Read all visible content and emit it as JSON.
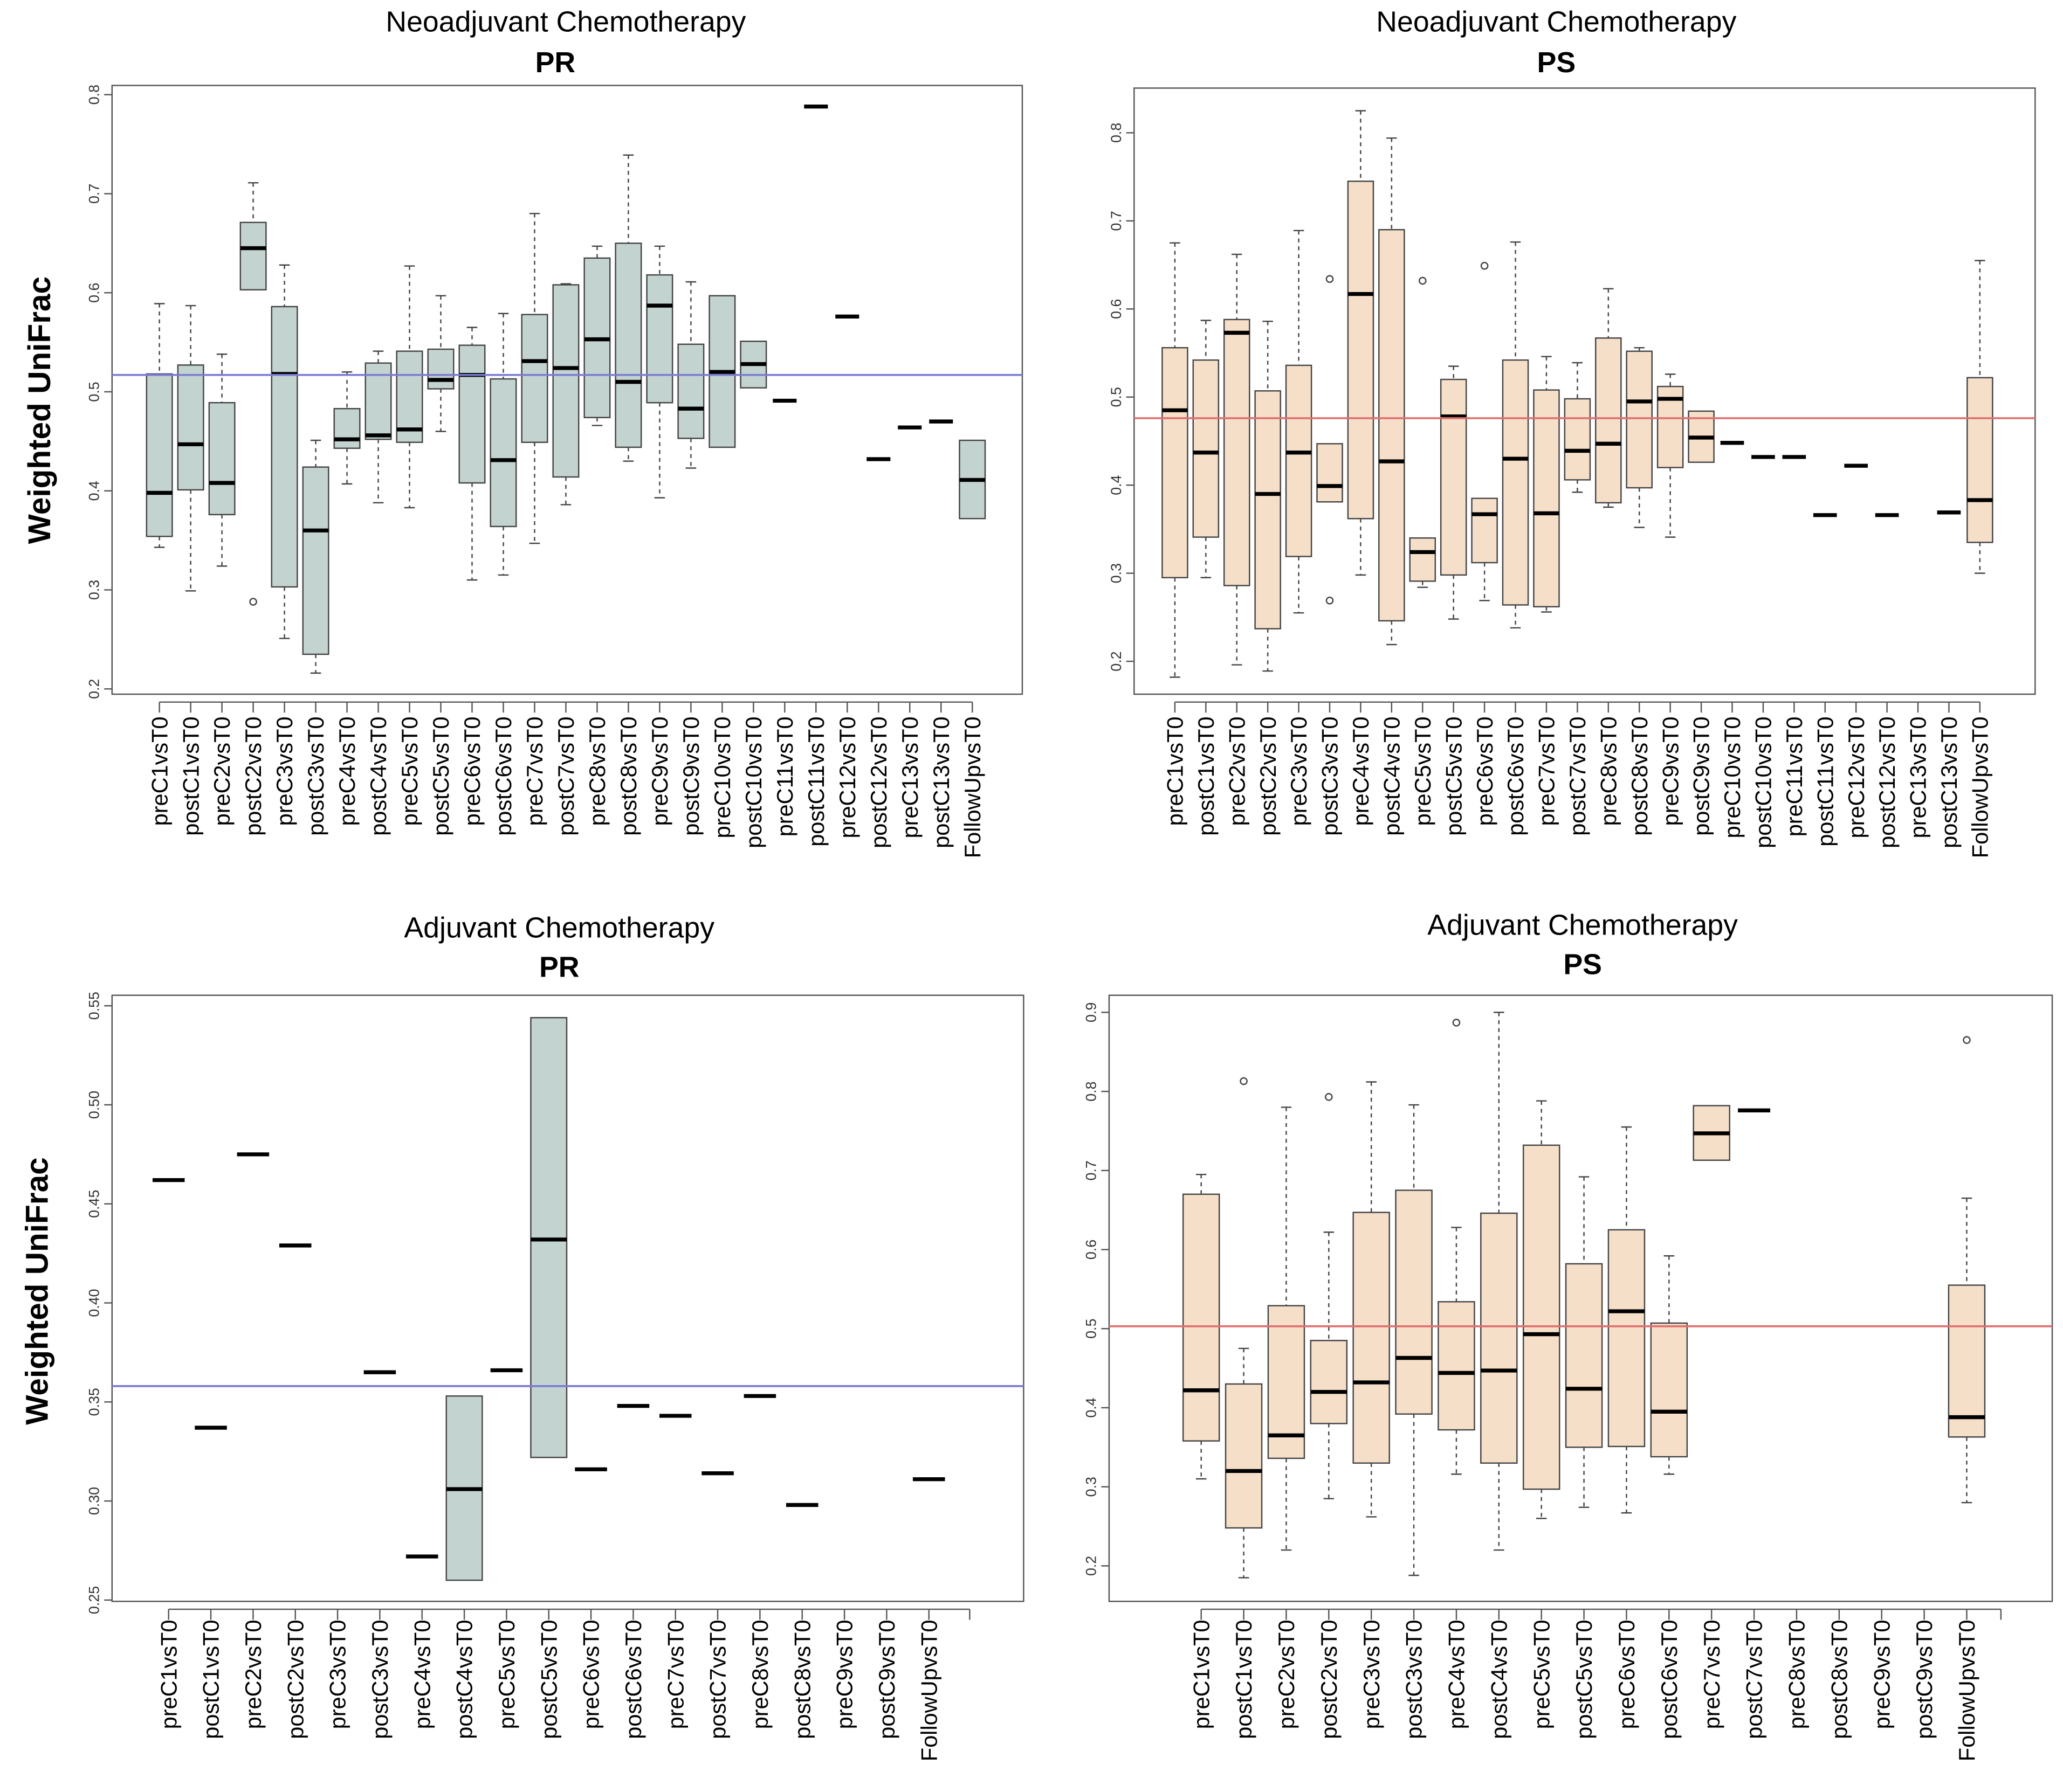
{
  "chart_data": [
    {
      "type": "box",
      "title": "Neoadjuvant Chemotherapy",
      "subtitle": "PR",
      "ylabel": "Weighted UniFrac",
      "xlabel": "",
      "ylim": [
        0.2,
        0.8
      ],
      "yticks": [
        "0.2",
        "0.3",
        "0.4",
        "0.5",
        "0.6",
        "0.7",
        "0.8"
      ],
      "reference_line": 0.517,
      "reference_color": "#7b7bd6",
      "box_color": "#c3d3d0",
      "categories": [
        "preC1vsT0",
        "postC1vsT0",
        "preC2vsT0",
        "postC2vsT0",
        "preC3vsT0",
        "postC3vsT0",
        "preC4vsT0",
        "postC4vsT0",
        "preC5vsT0",
        "postC5vsT0",
        "preC6vsT0",
        "postC6vsT0",
        "preC7vsT0",
        "postC7vsT0",
        "preC8vsT0",
        "postC8vsT0",
        "preC9vsT0",
        "postC9vsT0",
        "preC10vsT0",
        "postC10vsT0",
        "preC11vsT0",
        "postC11vsT0",
        "preC12vsT0",
        "postC12vsT0",
        "preC13vsT0",
        "postC13vsT0",
        "FollowUpvsT0"
      ],
      "stats_order": [
        "whisker_low",
        "q1",
        "median",
        "q3",
        "whisker_high"
      ],
      "boxes": [
        [
          0.343,
          0.354,
          0.398,
          0.518,
          0.589
        ],
        [
          0.299,
          0.401,
          0.447,
          0.527,
          0.587
        ],
        [
          0.324,
          0.376,
          0.408,
          0.489,
          0.538
        ],
        [
          0.603,
          0.603,
          0.645,
          0.671,
          0.711
        ],
        [
          0.251,
          0.303,
          0.518,
          0.586,
          0.628
        ],
        [
          0.216,
          0.235,
          0.36,
          0.424,
          0.451
        ],
        [
          0.407,
          0.443,
          0.452,
          0.483,
          0.52
        ],
        [
          0.388,
          0.452,
          0.456,
          0.529,
          0.541
        ],
        [
          0.383,
          0.449,
          0.462,
          0.541,
          0.627
        ],
        [
          0.46,
          0.503,
          0.512,
          0.543,
          0.597
        ],
        [
          0.31,
          0.408,
          0.517,
          0.547,
          0.565
        ],
        [
          0.315,
          0.364,
          0.431,
          0.513,
          0.579
        ],
        [
          0.347,
          0.449,
          0.531,
          0.578,
          0.68
        ],
        [
          0.386,
          0.414,
          0.524,
          0.608,
          0.609
        ],
        [
          0.466,
          0.474,
          0.553,
          0.635,
          0.647
        ],
        [
          0.43,
          0.444,
          0.51,
          0.65,
          0.739
        ],
        [
          0.393,
          0.489,
          0.587,
          0.618,
          0.647
        ],
        [
          0.423,
          0.453,
          0.483,
          0.548,
          0.611
        ],
        [
          0.444,
          0.444,
          0.52,
          0.597,
          0.597
        ],
        [
          0.504,
          0.504,
          0.528,
          0.551,
          0.551
        ],
        [
          0.491,
          0.491,
          0.491,
          0.491,
          0.491
        ],
        [
          0.788,
          0.788,
          0.788,
          0.788,
          0.788
        ],
        [
          0.576,
          0.576,
          0.576,
          0.576,
          0.576
        ],
        [
          0.432,
          0.432,
          0.432,
          0.432,
          0.432
        ],
        [
          0.464,
          0.464,
          0.464,
          0.464,
          0.464
        ],
        [
          0.47,
          0.47,
          0.47,
          0.47,
          0.47
        ],
        [
          0.372,
          0.372,
          0.411,
          0.451,
          0.451
        ]
      ],
      "outliers": [
        [],
        [],
        [],
        [
          0.288
        ],
        [],
        [],
        [],
        [],
        [],
        [],
        [],
        [],
        [],
        [],
        [],
        [],
        [],
        [],
        [],
        [],
        [],
        [],
        [],
        [],
        [],
        [],
        []
      ]
    },
    {
      "type": "box",
      "title": "Neoadjuvant Chemotherapy",
      "subtitle": "PS",
      "ylabel": "",
      "xlabel": "",
      "ylim": [
        0.15,
        0.85
      ],
      "yticks": [
        "0.2",
        "0.3",
        "0.4",
        "0.5",
        "0.6",
        "0.7",
        "0.8"
      ],
      "reference_line": 0.476,
      "reference_color": "#e07070",
      "box_color": "#f5dfc9",
      "categories": [
        "preC1vsT0",
        "postC1vsT0",
        "preC2vsT0",
        "postC2vsT0",
        "preC3vsT0",
        "postC3vsT0",
        "preC4vsT0",
        "postC4vsT0",
        "preC5vsT0",
        "postC5vsT0",
        "preC6vsT0",
        "postC6vsT0",
        "preC7vsT0",
        "postC7vsT0",
        "preC8vsT0",
        "postC8vsT0",
        "preC9vsT0",
        "postC9vsT0",
        "preC10vsT0",
        "postC10vsT0",
        "preC11vsT0",
        "postC11vsT0",
        "preC12vsT0",
        "postC12vsT0",
        "preC13vsT0",
        "postC13vsT0",
        "FollowUpvsT0"
      ],
      "stats_order": [
        "whisker_low",
        "q1",
        "median",
        "q3",
        "whisker_high"
      ],
      "boxes": [
        [
          0.182,
          0.295,
          0.485,
          0.556,
          0.675
        ],
        [
          0.295,
          0.341,
          0.437,
          0.542,
          0.587
        ],
        [
          0.196,
          0.286,
          0.573,
          0.588,
          0.662
        ],
        [
          0.189,
          0.237,
          0.39,
          0.507,
          0.586
        ],
        [
          0.255,
          0.319,
          0.437,
          0.536,
          0.689
        ],
        [
          0.381,
          0.381,
          0.399,
          0.447,
          0.447
        ],
        [
          0.298,
          0.362,
          0.617,
          0.745,
          0.825
        ],
        [
          0.219,
          0.246,
          0.427,
          0.69,
          0.794
        ],
        [
          0.284,
          0.291,
          0.324,
          0.34,
          0.34
        ],
        [
          0.248,
          0.298,
          0.478,
          0.52,
          0.535
        ],
        [
          0.269,
          0.312,
          0.367,
          0.385,
          0.385
        ],
        [
          0.238,
          0.264,
          0.43,
          0.542,
          0.676
        ],
        [
          0.256,
          0.262,
          0.368,
          0.508,
          0.546
        ],
        [
          0.392,
          0.406,
          0.439,
          0.498,
          0.539
        ],
        [
          0.375,
          0.38,
          0.447,
          0.567,
          0.623
        ],
        [
          0.352,
          0.397,
          0.495,
          0.552,
          0.556
        ],
        [
          0.341,
          0.42,
          0.498,
          0.512,
          0.526
        ],
        [
          0.426,
          0.426,
          0.454,
          0.484,
          0.484
        ],
        [
          0.448,
          0.448,
          0.448,
          0.448,
          0.448
        ],
        [
          0.432,
          0.432,
          0.432,
          0.432,
          0.432
        ],
        [
          0.432,
          0.432,
          0.432,
          0.432,
          0.432
        ],
        [
          0.366,
          0.366,
          0.366,
          0.366,
          0.366
        ],
        [
          0.422,
          0.422,
          0.422,
          0.422,
          0.422
        ],
        [
          0.366,
          0.366,
          0.366,
          0.366,
          0.366
        ],
        null,
        [
          0.369,
          0.369,
          0.369,
          0.369,
          0.369
        ],
        [
          0.3,
          0.335,
          0.383,
          0.522,
          0.655
        ]
      ],
      "outliers": [
        [],
        [],
        [],
        [],
        [],
        [
          0.634,
          0.269
        ],
        [],
        [],
        [
          0.632
        ],
        [],
        [
          0.649
        ],
        [],
        [],
        [],
        [],
        [],
        [],
        [],
        [],
        [],
        [],
        [],
        [],
        [],
        [],
        [],
        []
      ]
    },
    {
      "type": "box",
      "title": "Adjuvant Chemotherapy",
      "subtitle": "PR",
      "ylabel": "Weighted UniFrac",
      "xlabel": "",
      "ylim": [
        0.25,
        0.55
      ],
      "yticks": [
        "0.25",
        "0.30",
        "0.35",
        "0.40",
        "0.45",
        "0.50",
        "0.55"
      ],
      "reference_line": 0.358,
      "reference_color": "#7b7bd6",
      "box_color": "#c3d3d0",
      "categories": [
        "preC1vsT0",
        "postC1vsT0",
        "preC2vsT0",
        "postC2vsT0",
        "preC3vsT0",
        "postC3vsT0",
        "preC4vsT0",
        "postC4vsT0",
        "preC5vsT0",
        "postC5vsT0",
        "preC6vsT0",
        "postC6vsT0",
        "preC7vsT0",
        "postC7vsT0",
        "preC8vsT0",
        "postC8vsT0",
        "preC9vsT0",
        "postC9vsT0",
        "FollowUpvsT0"
      ],
      "stats_order": [
        "whisker_low",
        "q1",
        "median",
        "q3",
        "whisker_high"
      ],
      "boxes": [
        [
          0.462,
          0.462,
          0.462,
          0.462,
          0.462
        ],
        [
          0.337,
          0.337,
          0.337,
          0.337,
          0.337
        ],
        [
          0.475,
          0.475,
          0.475,
          0.475,
          0.475
        ],
        [
          0.429,
          0.429,
          0.429,
          0.429,
          0.429
        ],
        null,
        [
          0.365,
          0.365,
          0.365,
          0.365,
          0.365
        ],
        [
          0.272,
          0.272,
          0.272,
          0.272,
          0.272
        ],
        [
          0.26,
          0.26,
          0.306,
          0.353,
          0.353
        ],
        [
          0.366,
          0.366,
          0.366,
          0.366,
          0.366
        ],
        [
          0.322,
          0.322,
          0.432,
          0.544,
          0.544
        ],
        [
          0.316,
          0.316,
          0.316,
          0.316,
          0.316
        ],
        [
          0.348,
          0.348,
          0.348,
          0.348,
          0.348
        ],
        [
          0.343,
          0.343,
          0.343,
          0.343,
          0.343
        ],
        [
          0.314,
          0.314,
          0.314,
          0.314,
          0.314
        ],
        [
          0.353,
          0.353,
          0.353,
          0.353,
          0.353
        ],
        [
          0.298,
          0.298,
          0.298,
          0.298,
          0.298
        ],
        null,
        null,
        [
          0.311,
          0.311,
          0.311,
          0.311,
          0.311
        ]
      ],
      "outliers": [
        [],
        [],
        [],
        [],
        [],
        [],
        [],
        [],
        [],
        [],
        [],
        [],
        [],
        [],
        [],
        [],
        [],
        [],
        []
      ]
    },
    {
      "type": "box",
      "title": "Adjuvant Chemotherapy",
      "subtitle": "PS",
      "ylabel": "",
      "xlabel": "",
      "ylim": [
        0.15,
        0.92
      ],
      "yticks": [
        "0.2",
        "0.3",
        "0.4",
        "0.5",
        "0.6",
        "0.7",
        "0.8",
        "0.9"
      ],
      "reference_line": 0.503,
      "reference_color": "#e07070",
      "box_color": "#f5dfc9",
      "categories": [
        "preC1vsT0",
        "postC1vsT0",
        "preC2vsT0",
        "postC2vsT0",
        "preC3vsT0",
        "postC3vsT0",
        "preC4vsT0",
        "postC4vsT0",
        "preC5vsT0",
        "postC5vsT0",
        "preC6vsT0",
        "postC6vsT0",
        "preC7vsT0",
        "postC7vsT0",
        "preC8vsT0",
        "postC8vsT0",
        "preC9vsT0",
        "postC9vsT0",
        "FollowUpvsT0"
      ],
      "stats_order": [
        "whisker_low",
        "q1",
        "median",
        "q3",
        "whisker_high"
      ],
      "boxes": [
        [
          0.31,
          0.358,
          0.422,
          0.67,
          0.695
        ],
        [
          0.185,
          0.248,
          0.32,
          0.43,
          0.475
        ],
        [
          0.22,
          0.336,
          0.365,
          0.529,
          0.78
        ],
        [
          0.285,
          0.38,
          0.42,
          0.485,
          0.622
        ],
        [
          0.262,
          0.33,
          0.432,
          0.647,
          0.812
        ],
        [
          0.188,
          0.392,
          0.463,
          0.675,
          0.783
        ],
        [
          0.316,
          0.372,
          0.444,
          0.534,
          0.628
        ],
        [
          0.22,
          0.33,
          0.447,
          0.646,
          0.9
        ],
        [
          0.26,
          0.297,
          0.493,
          0.732,
          0.788
        ],
        [
          0.274,
          0.35,
          0.424,
          0.582,
          0.692
        ],
        [
          0.267,
          0.351,
          0.522,
          0.625,
          0.755
        ],
        [
          0.316,
          0.338,
          0.395,
          0.507,
          0.592
        ],
        [
          0.713,
          0.713,
          0.747,
          0.782,
          0.782
        ],
        [
          0.776,
          0.776,
          0.776,
          0.776,
          0.776
        ],
        null,
        null,
        null,
        null,
        [
          0.28,
          0.363,
          0.388,
          0.555,
          0.665
        ]
      ],
      "outliers": [
        [],
        [
          0.813
        ],
        [],
        [
          0.793
        ],
        [],
        [],
        [
          0.887
        ],
        [],
        [],
        [],
        [],
        [],
        [],
        [],
        [],
        [],
        [],
        [],
        [
          0.865
        ]
      ]
    }
  ]
}
